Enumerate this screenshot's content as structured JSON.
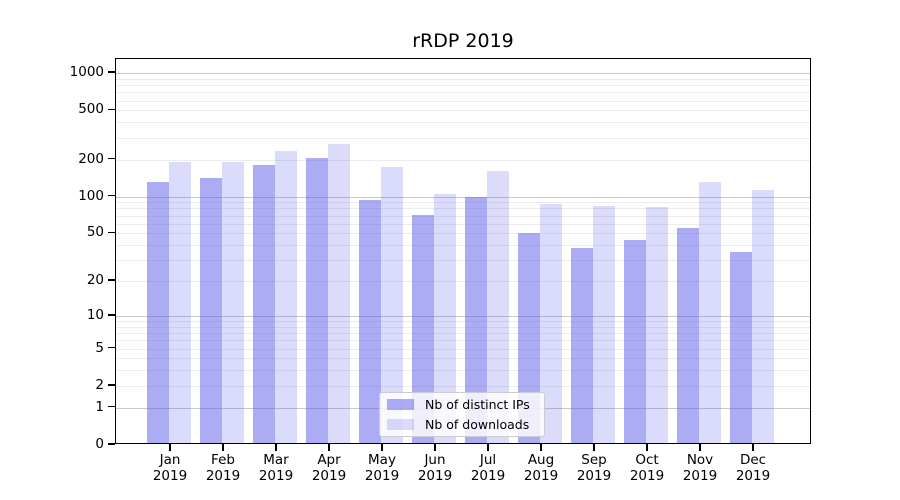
{
  "chart_data": {
    "type": "bar",
    "title": "rRDP 2019",
    "categories": [
      "Jan",
      "Feb",
      "Mar",
      "Apr",
      "May",
      "Jun",
      "Jul",
      "Aug",
      "Sep",
      "Oct",
      "Nov",
      "Dec"
    ],
    "year_label": "2019",
    "series": [
      {
        "name": "Nb of distinct IPs",
        "fill": "rgba(90,90,235,0.5)",
        "values": [
          130,
          142,
          180,
          207,
          93,
          70,
          98,
          50,
          38,
          44,
          55,
          35
        ]
      },
      {
        "name": "Nb of downloads",
        "fill": "rgba(90,90,235,0.22)",
        "values": [
          189,
          191,
          235,
          265,
          172,
          104,
          160,
          86,
          83,
          82,
          132,
          113
        ]
      }
    ],
    "y_axis": {
      "scale": "symlog-log1p",
      "tick_labels": [
        "0",
        "1",
        "2",
        "5",
        "10",
        "20",
        "50",
        "100",
        "200",
        "500",
        "1000"
      ],
      "tick_values": [
        0,
        1,
        2,
        5,
        10,
        20,
        50,
        100,
        200,
        500,
        1000
      ],
      "major_grid_values": [
        1,
        10,
        100,
        1000
      ],
      "ylim": [
        0,
        1300
      ]
    },
    "xlabel": "",
    "ylabel": "",
    "grid": true,
    "legend_position": "lower-center",
    "colors": {
      "grid_minor": "#ececec",
      "grid_major": "#c9c9c9",
      "axis_frame": "#000000",
      "legend_border": "#cccccc",
      "legend_bg": "rgba(255,255,255,0.8)",
      "text": "#000000"
    }
  }
}
